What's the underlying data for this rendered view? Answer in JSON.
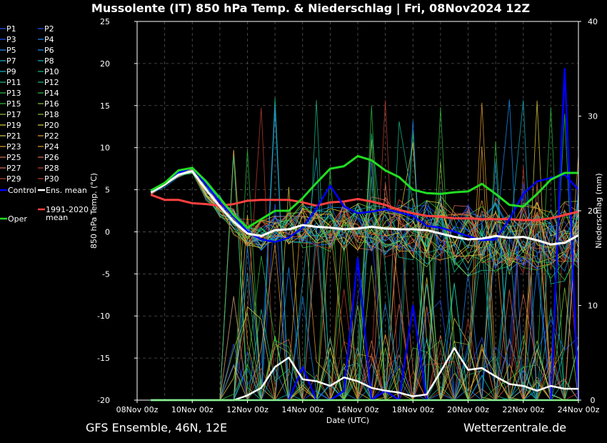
{
  "title": "Mussolente  (IT)  850 hPa Temp. & Niederschlag | Fri, 08Nov2024 12Z",
  "footer": {
    "left": "GFS Ensemble, 46N, 12E",
    "right": "Wetterzentrale.de"
  },
  "colors": {
    "background": "#000000",
    "grid": "#555555",
    "control": "#0000ff",
    "ens_mean": "#ffffff",
    "climate": "#ff4040",
    "oper": "#22dd22",
    "ensemble_palette": [
      "#2255ff",
      "#1e90ff",
      "#17b8c8",
      "#18c090",
      "#2ec040",
      "#8cc83c",
      "#e0d040",
      "#e8a030",
      "#e07050",
      "#c04030"
    ]
  },
  "legend": {
    "members": [
      "P1",
      "P2",
      "P3",
      "P4",
      "P5",
      "P6",
      "P7",
      "P8",
      "P9",
      "P10",
      "P11",
      "P12",
      "P13",
      "P14",
      "P15",
      "P16",
      "P17",
      "P18",
      "P19",
      "P20",
      "P21",
      "P22",
      "P23",
      "P24",
      "P25",
      "P26",
      "P27",
      "P28",
      "P29",
      "P30"
    ],
    "control": "Control",
    "ens_mean": "Ens. mean",
    "climate": "1991-2020 mean",
    "oper": "Oper"
  },
  "chart_data": {
    "type": "line",
    "title": "Mussolente  (IT)  850 hPa Temp. & Niederschlag | Fri, 08Nov2024 12Z",
    "xlabel": "Date (UTC)",
    "ylabel": "850 hPa Temp. (°C)",
    "y2label": "Niederschlag (mm)",
    "xlim": [
      0,
      16
    ],
    "ylim": [
      -20,
      25
    ],
    "y2lim": [
      0,
      40
    ],
    "yticks": [
      -20,
      -15,
      -10,
      -5,
      0,
      5,
      10,
      15,
      20,
      25
    ],
    "y2ticks": [
      0,
      10,
      20,
      30,
      40
    ],
    "x_tick_labels": [
      {
        "day": 0,
        "label": "08Nov 00z"
      },
      {
        "day": 2,
        "label": "10Nov 00z"
      },
      {
        "day": 4,
        "label": "12Nov 00z"
      },
      {
        "day": 6,
        "label": "14Nov 00z"
      },
      {
        "day": 8,
        "label": "16Nov 00z"
      },
      {
        "day": 10,
        "label": "18Nov 00z"
      },
      {
        "day": 12,
        "label": "20Nov 00z"
      },
      {
        "day": 14,
        "label": "22Nov 00z"
      },
      {
        "day": 16,
        "label": "24Nov 00z"
      }
    ],
    "x_days": [
      0.5,
      1.0,
      1.5,
      2.0,
      2.5,
      3.0,
      3.5,
      4.0,
      4.5,
      5.0,
      5.5,
      6.0,
      6.5,
      7.0,
      7.5,
      8.0,
      8.5,
      9.0,
      9.5,
      10.0,
      10.5,
      11.0,
      11.5,
      12.0,
      12.5,
      13.0,
      13.5,
      14.0,
      14.5,
      15.0,
      15.5,
      16.0
    ],
    "temperature": {
      "oper": [
        4.9,
        5.8,
        7.3,
        7.6,
        6.0,
        4.0,
        2.0,
        0.5,
        1.5,
        2.5,
        2.5,
        4.0,
        5.8,
        7.5,
        7.8,
        9.0,
        8.5,
        7.3,
        6.5,
        5.0,
        4.6,
        4.5,
        4.7,
        4.8,
        5.7,
        4.5,
        3.2,
        3.0,
        4.5,
        6.2,
        7.0,
        7.0
      ],
      "control": [
        4.8,
        5.7,
        7.0,
        7.6,
        5.6,
        3.5,
        1.8,
        0.0,
        -0.9,
        -1.2,
        -0.7,
        0.5,
        2.8,
        5.5,
        3.0,
        2.2,
        2.4,
        2.7,
        2.3,
        1.9,
        0.7,
        0.5,
        0.0,
        -0.5,
        -1.0,
        -0.9,
        1.5,
        4.5,
        6.0,
        6.4,
        6.8,
        5.0
      ],
      "ens_mean": [
        4.7,
        5.6,
        6.8,
        7.2,
        5.0,
        3.0,
        1.2,
        -0.2,
        -0.5,
        0.2,
        0.3,
        0.8,
        0.6,
        0.5,
        0.3,
        0.4,
        0.6,
        0.4,
        0.3,
        0.3,
        0.2,
        -0.2,
        -0.6,
        -0.9,
        -0.8,
        -0.5,
        -0.7,
        -0.6,
        -1.0,
        -1.5,
        -1.3,
        -0.4
      ],
      "climate_1991_2020": [
        4.4,
        3.8,
        3.8,
        3.4,
        3.3,
        3.1,
        3.3,
        3.7,
        3.8,
        3.8,
        3.8,
        3.5,
        3.1,
        3.5,
        3.6,
        3.9,
        3.6,
        3.2,
        2.6,
        2.2,
        1.9,
        1.8,
        1.6,
        1.6,
        1.5,
        1.5,
        1.5,
        1.4,
        1.4,
        1.6,
        2.0,
        2.4
      ]
    },
    "precipitation_mm": {
      "oper": [
        0,
        0,
        0,
        0,
        0,
        0,
        0,
        0,
        0,
        0,
        0,
        0,
        0,
        0,
        0,
        0,
        0,
        0,
        0,
        0,
        0,
        0,
        0,
        0,
        0,
        0,
        0,
        0,
        0,
        0,
        0,
        0
      ],
      "control": [
        0,
        0,
        0,
        0,
        0,
        0,
        0,
        0,
        0,
        0,
        0,
        3.5,
        0,
        0,
        1,
        15,
        0,
        1,
        0,
        10,
        0,
        0,
        0,
        0,
        0,
        0,
        0,
        0,
        0,
        0,
        35,
        0
      ],
      "ens_mean": [
        0,
        0,
        0,
        0,
        0,
        0,
        0,
        0.5,
        1.3,
        3.5,
        4.5,
        2.2,
        2.0,
        1.5,
        2.4,
        2.0,
        1.3,
        1.0,
        0.8,
        0.4,
        0.6,
        3.0,
        5.5,
        3.2,
        3.4,
        2.5,
        1.7,
        1.5,
        1.0,
        1.5,
        1.2,
        1.2
      ]
    },
    "ensemble_members_count": 30
  }
}
